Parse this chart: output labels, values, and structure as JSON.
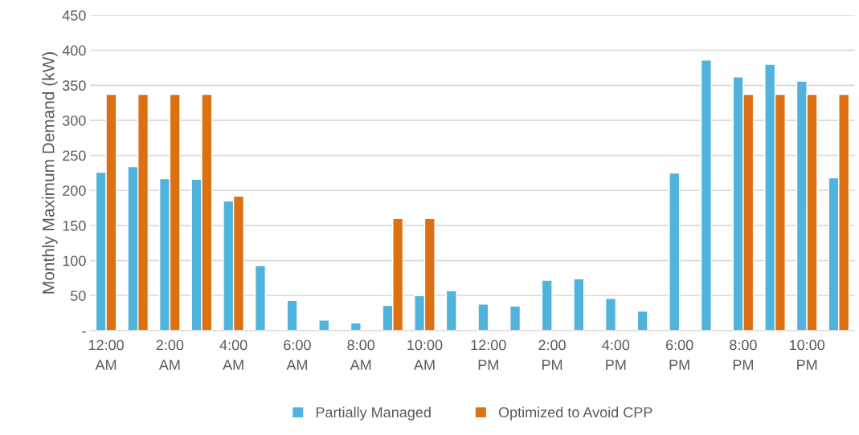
{
  "chart_data": {
    "type": "bar",
    "ylabel": "Monthly Maximum Demand (kW)",
    "categories": [
      "12:00\nAM",
      null,
      "2:00\nAM",
      null,
      "4:00\nAM",
      null,
      "6:00\nAM",
      null,
      "8:00\nAM",
      null,
      "10:00\nAM",
      null,
      "12:00\nPM",
      null,
      "2:00\nPM",
      null,
      "4:00\nPM",
      null,
      "6:00\nPM",
      null,
      "8:00\nPM",
      null,
      "10:00\nPM",
      null
    ],
    "series": [
      {
        "name": "Partially Managed",
        "color": "#4fb3dc",
        "values": [
          226,
          234,
          217,
          216,
          185,
          93,
          43,
          15,
          11,
          36,
          50,
          57,
          38,
          35,
          72,
          74,
          46,
          28,
          225,
          386,
          362,
          380,
          356,
          218
        ]
      },
      {
        "name": "Optimized to Avoid CPP",
        "color": "#dd7012",
        "values": [
          337,
          337,
          337,
          337,
          192,
          null,
          null,
          null,
          null,
          160,
          160,
          null,
          null,
          null,
          null,
          null,
          null,
          null,
          null,
          null,
          337,
          337,
          337,
          337
        ]
      }
    ],
    "ylim": [
      0,
      450
    ],
    "yticks": [
      {
        "value": 0,
        "label": "-"
      },
      50,
      100,
      150,
      200,
      250,
      300,
      350,
      400,
      450
    ],
    "grid": "y",
    "legend": "bottom"
  }
}
